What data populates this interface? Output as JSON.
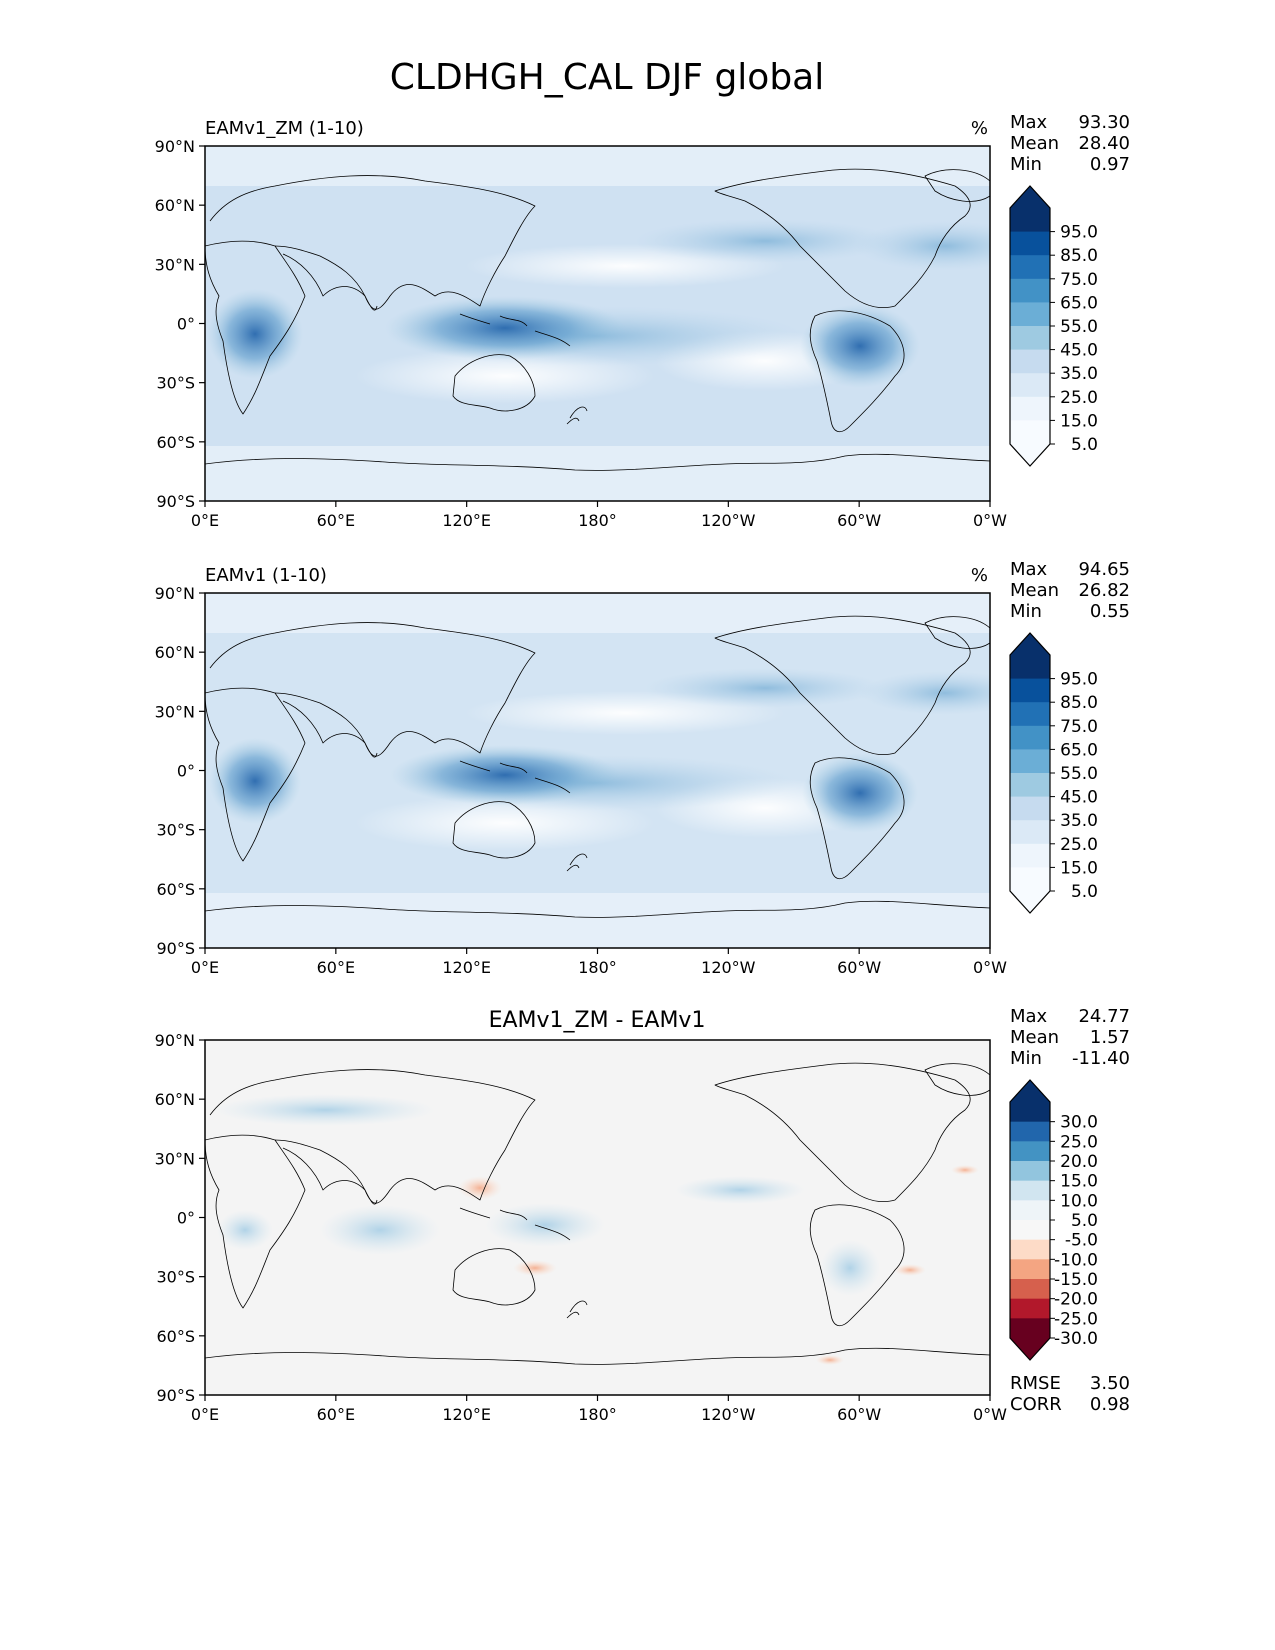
{
  "figure_title": "CLDHGH_CAL DJF global",
  "x_ticks": [
    "0°E",
    "60°E",
    "120°E",
    "180°",
    "120°W",
    "60°W",
    "0°W"
  ],
  "y_ticks": [
    "90°N",
    "60°N",
    "30°N",
    "0°",
    "30°S",
    "60°S",
    "90°S"
  ],
  "chart_data": [
    {
      "type": "heatmap",
      "title": "EAMv1_ZM (1-10)",
      "units": "%",
      "stats": {
        "max_label": "Max",
        "max": "93.30",
        "mean_label": "Mean",
        "mean": "28.40",
        "min_label": "Min",
        "min": "0.97"
      },
      "xlim": [
        0,
        360
      ],
      "ylim": [
        -90,
        90
      ],
      "colorbar": {
        "labels": [
          "95.0",
          "85.0",
          "75.0",
          "65.0",
          "55.0",
          "45.0",
          "35.0",
          "25.0",
          "15.0",
          "5.0"
        ],
        "colors": [
          "#08306b",
          "#08519c",
          "#2171b5",
          "#4292c6",
          "#6baed6",
          "#9ecae1",
          "#c6dbef",
          "#dbe9f6",
          "#eef5fc",
          "#f7fbff"
        ]
      }
    },
    {
      "type": "heatmap",
      "title": "EAMv1 (1-10)",
      "units": "%",
      "stats": {
        "max_label": "Max",
        "max": "94.65",
        "mean_label": "Mean",
        "mean": "26.82",
        "min_label": "Min",
        "min": "0.55"
      },
      "xlim": [
        0,
        360
      ],
      "ylim": [
        -90,
        90
      ],
      "colorbar": {
        "labels": [
          "95.0",
          "85.0",
          "75.0",
          "65.0",
          "55.0",
          "45.0",
          "35.0",
          "25.0",
          "15.0",
          "5.0"
        ],
        "colors": [
          "#08306b",
          "#08519c",
          "#2171b5",
          "#4292c6",
          "#6baed6",
          "#9ecae1",
          "#c6dbef",
          "#dbe9f6",
          "#eef5fc",
          "#f7fbff"
        ]
      }
    },
    {
      "type": "heatmap",
      "title": "EAMv1_ZM - EAMv1",
      "units": "",
      "stats": {
        "max_label": "Max",
        "max": "24.77",
        "mean_label": "Mean",
        "mean": "1.57",
        "min_label": "Min",
        "min": "-11.40"
      },
      "extra_stats": {
        "rmse_label": "RMSE",
        "rmse": "3.50",
        "corr_label": "CORR",
        "corr": "0.98"
      },
      "xlim": [
        0,
        360
      ],
      "ylim": [
        -90,
        90
      ],
      "colorbar": {
        "labels": [
          "30.0",
          "25.0",
          "20.0",
          "15.0",
          "10.0",
          "5.0",
          "-5.0",
          "-10.0",
          "-15.0",
          "-20.0",
          "-25.0",
          "-30.0"
        ],
        "colors": [
          "#08306b",
          "#2166ac",
          "#4393c3",
          "#92c5de",
          "#d1e5f0",
          "#eef4f8",
          "#f7f7f7",
          "#fddbc7",
          "#f4a582",
          "#d6604d",
          "#b2182b",
          "#67001f"
        ]
      }
    }
  ]
}
